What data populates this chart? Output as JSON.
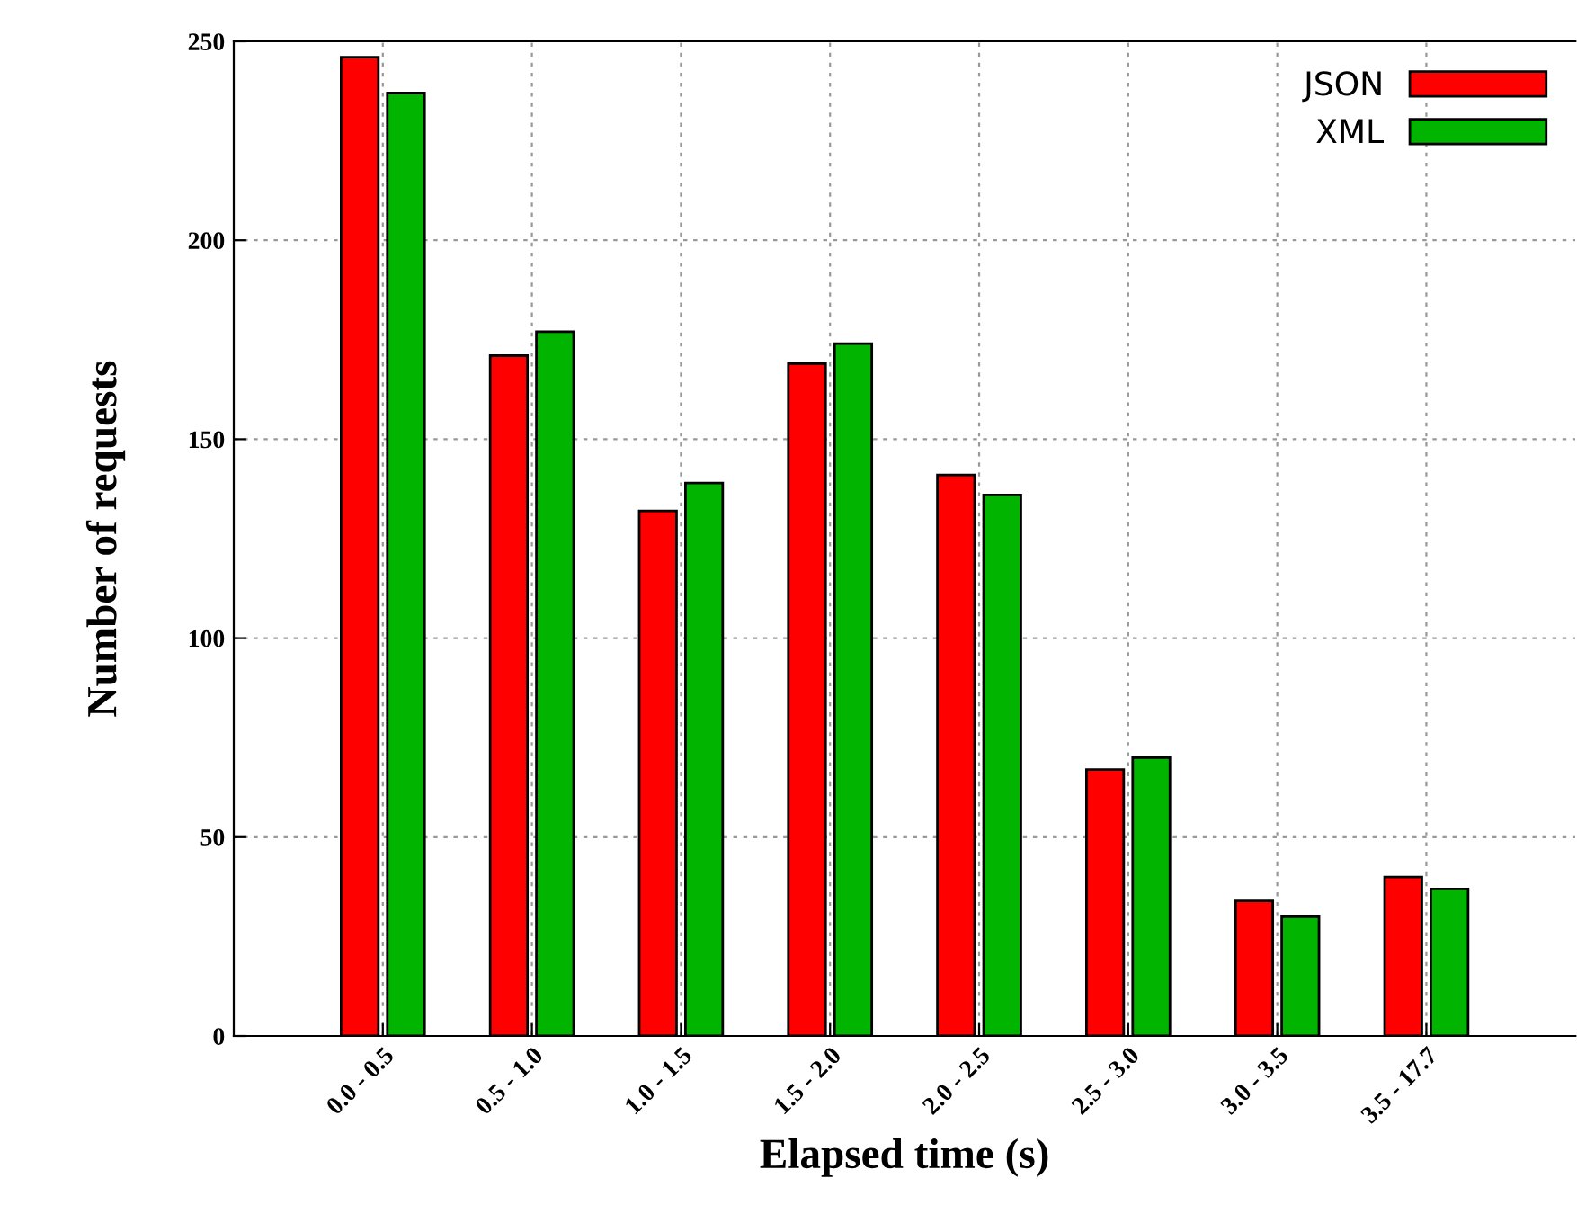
{
  "chart_data": {
    "type": "bar",
    "xlabel": "Elapsed time (s)",
    "ylabel": "Number of requests",
    "categories": [
      "0.0 - 0.5",
      "0.5 - 1.0",
      "1.0 - 1.5",
      "1.5 - 2.0",
      "2.0 - 2.5",
      "2.5 - 3.0",
      "3.0 - 3.5",
      "3.5 - 17.7"
    ],
    "series": [
      {
        "name": "JSON",
        "color": "#ff0000",
        "values": [
          246,
          171,
          132,
          169,
          141,
          67,
          34,
          40
        ]
      },
      {
        "name": "XML",
        "color": "#00b400",
        "values": [
          237,
          177,
          139,
          174,
          136,
          70,
          30,
          37
        ]
      }
    ],
    "ylim": [
      0,
      250
    ],
    "yticks": [
      0,
      50,
      100,
      150,
      200,
      250
    ],
    "grid": true,
    "legend": "top right"
  }
}
